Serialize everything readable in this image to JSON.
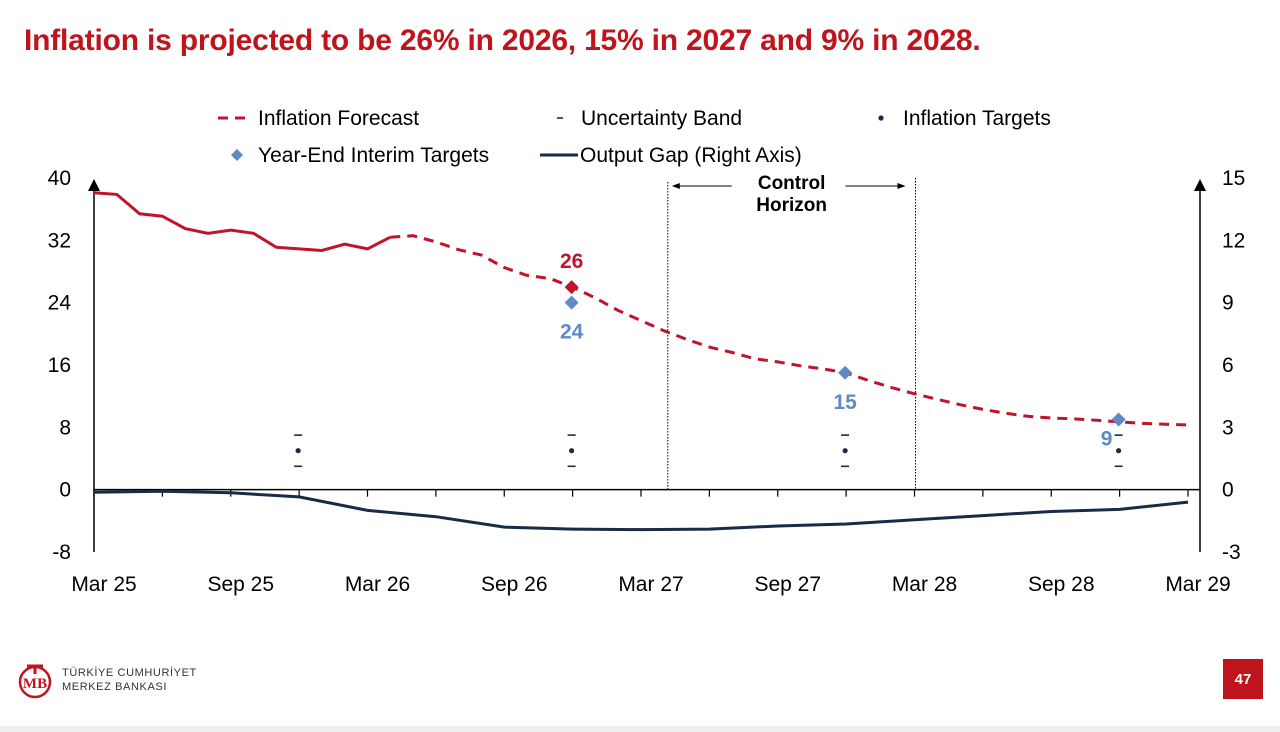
{
  "page": {
    "title": "Inflation is projected to be 26% in 2026, 15% in 2027 and 9% in 2028.",
    "page_number": "47"
  },
  "logo": {
    "line1": "TÜRKİYE CUMHURİYET",
    "line2": "MERKEZ BANKASI"
  },
  "colors": {
    "forecast": "#c0142c",
    "target": "#5f8ac5",
    "output_gap": "#1a2b45",
    "accent": "#c0141c"
  },
  "chart_data": {
    "type": "line",
    "x_ticks": [
      "Mar 25",
      "Sep 25",
      "Mar 26",
      "Sep 26",
      "Mar 27",
      "Sep 27",
      "Mar 28",
      "Sep 28",
      "Mar 29"
    ],
    "ylim_left": [
      -8,
      40
    ],
    "yticks_left": [
      "-8",
      "0",
      "8",
      "16",
      "24",
      "32",
      "40"
    ],
    "ylim_right": [
      -3,
      15
    ],
    "yticks_right": [
      "-3",
      "0",
      "3",
      "6",
      "9",
      "12",
      "15"
    ],
    "legend": [
      {
        "label": "Inflation Forecast",
        "icon": "dashed-line-icon"
      },
      {
        "label": "Uncertainty Band",
        "icon": "dash-icon"
      },
      {
        "label": "Inflation Targets",
        "icon": "dot-icon"
      },
      {
        "label": "Year-End Interim Targets",
        "icon": "diamond-icon"
      },
      {
        "label": "Output Gap (Right Axis)",
        "icon": "solid-line-icon"
      }
    ],
    "series": [
      {
        "name": "Inflation Forecast",
        "axis": "left",
        "points": [
          [
            "2025-03",
            38.1
          ],
          [
            "2025-04",
            37.9
          ],
          [
            "2025-05",
            35.4
          ],
          [
            "2025-06",
            35.1
          ],
          [
            "2025-07",
            33.5
          ],
          [
            "2025-08",
            32.9
          ],
          [
            "2025-09",
            33.3
          ],
          [
            "2025-10",
            32.9
          ],
          [
            "2025-11",
            31.1
          ],
          [
            "2025-12",
            30.9
          ],
          [
            "2026-01",
            30.7
          ],
          [
            "2026-02",
            31.5
          ],
          [
            "2026-03",
            30.9
          ],
          [
            "2026-04",
            32.4
          ],
          [
            "2026-05",
            32.6
          ],
          [
            "2026-06",
            31.8
          ],
          [
            "2026-07",
            30.8
          ],
          [
            "2026-08",
            30.1
          ],
          [
            "2026-09",
            28.5
          ],
          [
            "2026-10",
            27.5
          ],
          [
            "2026-11",
            27.1
          ],
          [
            "2026-12",
            26.0
          ],
          [
            "2027-01",
            24.6
          ],
          [
            "2027-02",
            23.0
          ],
          [
            "2027-03",
            21.7
          ],
          [
            "2027-04",
            20.4
          ],
          [
            "2027-05",
            19.3
          ],
          [
            "2027-06",
            18.3
          ],
          [
            "2027-07",
            17.6
          ],
          [
            "2027-08",
            16.8
          ],
          [
            "2027-09",
            16.4
          ],
          [
            "2027-10",
            15.9
          ],
          [
            "2027-11",
            15.5
          ],
          [
            "2027-12",
            15.0
          ],
          [
            "2028-01",
            14.0
          ],
          [
            "2028-02",
            13.1
          ],
          [
            "2028-03",
            12.3
          ],
          [
            "2028-04",
            11.6
          ],
          [
            "2028-05",
            10.9
          ],
          [
            "2028-06",
            10.3
          ],
          [
            "2028-07",
            9.8
          ],
          [
            "2028-08",
            9.4
          ],
          [
            "2028-09",
            9.2
          ],
          [
            "2028-10",
            9.1
          ],
          [
            "2028-11",
            8.9
          ],
          [
            "2028-12",
            8.7
          ],
          [
            "2029-01",
            8.5
          ],
          [
            "2029-02",
            8.4
          ],
          [
            "2029-03",
            8.3
          ]
        ],
        "dashed_from": "2026-04"
      },
      {
        "name": "Output Gap (Right Axis)",
        "axis": "right",
        "points": [
          [
            "2025-03",
            -0.12
          ],
          [
            "2025-06",
            -0.08
          ],
          [
            "2025-09",
            -0.15
          ],
          [
            "2025-12",
            -0.35
          ],
          [
            "2026-03",
            -1.0
          ],
          [
            "2026-06",
            -1.3
          ],
          [
            "2026-09",
            -1.8
          ],
          [
            "2026-12",
            -1.9
          ],
          [
            "2027-03",
            -1.92
          ],
          [
            "2027-06",
            -1.9
          ],
          [
            "2027-09",
            -1.75
          ],
          [
            "2027-12",
            -1.65
          ],
          [
            "2028-03",
            -1.45
          ],
          [
            "2028-06",
            -1.25
          ],
          [
            "2028-09",
            -1.05
          ],
          [
            "2028-12",
            -0.95
          ],
          [
            "2029-03",
            -0.6
          ]
        ]
      }
    ],
    "interim_targets": [
      {
        "date": "2026-12",
        "value": 24,
        "label": "24"
      },
      {
        "date": "2027-12",
        "value": 15,
        "label": "15"
      },
      {
        "date": "2028-12",
        "value": 9,
        "label": "9"
      }
    ],
    "forecast_highlights": [
      {
        "date": "2026-12",
        "value": 26,
        "label": "26"
      }
    ],
    "inflation_targets": [
      {
        "date": "2025-12",
        "value": 5,
        "band": [
          3,
          7
        ]
      },
      {
        "date": "2026-12",
        "value": 5,
        "band": [
          3,
          7
        ]
      },
      {
        "date": "2027-12",
        "value": 5,
        "band": [
          3,
          7
        ]
      },
      {
        "date": "2028-12",
        "value": 5,
        "band": [
          3,
          7
        ]
      }
    ],
    "control_horizon": {
      "label_line1": "Control",
      "label_line2": "Horizon",
      "start": "2027-04",
      "end": "2028-03"
    }
  }
}
